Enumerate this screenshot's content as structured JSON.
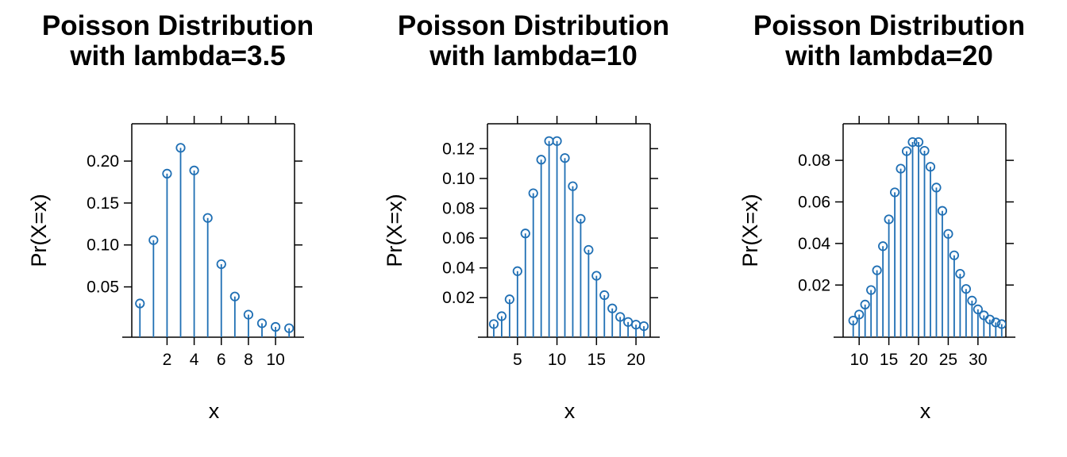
{
  "chart_data": [
    {
      "type": "lollipop",
      "title_lines": [
        "Poisson Distribution",
        "with lambda=3.5"
      ],
      "xlabel": "x",
      "ylabel": "Pr(X=x)",
      "xlim": [
        -0.6,
        11.4
      ],
      "ylim": [
        -0.01,
        0.2445
      ],
      "xticks": [
        2,
        4,
        6,
        8,
        10
      ],
      "xtick_labels": [
        "2",
        "4",
        "6",
        "8",
        "10"
      ],
      "yticks": [
        0.05,
        0.1,
        0.15,
        0.2
      ],
      "ytick_labels": [
        "0.05",
        "0.10",
        "0.15",
        "0.20"
      ],
      "x": [
        0,
        1,
        2,
        3,
        4,
        5,
        6,
        7,
        8,
        9,
        10,
        11
      ],
      "values": [
        0.0302,
        0.1057,
        0.185,
        0.2158,
        0.1888,
        0.1322,
        0.0771,
        0.0385,
        0.0169,
        0.0066,
        0.0023,
        0.0007
      ],
      "color": "#1F6FB4"
    },
    {
      "type": "lollipop",
      "title_lines": [
        "Poisson Distribution",
        "with lambda=10"
      ],
      "xlabel": "x",
      "ylabel": "Pr(X=x)",
      "xlim": [
        1.2,
        21.8
      ],
      "ylim": [
        -0.0065,
        0.1367
      ],
      "xticks": [
        5,
        10,
        15,
        20
      ],
      "xtick_labels": [
        "5",
        "10",
        "15",
        "20"
      ],
      "yticks": [
        0.02,
        0.04,
        0.06,
        0.08,
        0.1,
        0.12
      ],
      "ytick_labels": [
        "0.02",
        "0.04",
        "0.06",
        "0.08",
        "0.10",
        "0.12"
      ],
      "x": [
        2,
        3,
        4,
        5,
        6,
        7,
        8,
        9,
        10,
        11,
        12,
        13,
        14,
        15,
        16,
        17,
        18,
        19,
        20,
        21
      ],
      "values": [
        0.0023,
        0.0076,
        0.0189,
        0.0378,
        0.0631,
        0.0901,
        0.1126,
        0.1251,
        0.1251,
        0.1137,
        0.0948,
        0.0729,
        0.0521,
        0.0347,
        0.0217,
        0.0128,
        0.0071,
        0.0037,
        0.0019,
        0.0009
      ],
      "color": "#1F6FB4"
    },
    {
      "type": "lollipop",
      "title_lines": [
        "Poisson Distribution",
        "with lambda=20"
      ],
      "xlabel": "x",
      "ylabel": "Pr(X=x)",
      "xlim": [
        7.3,
        34.7
      ],
      "ylim": [
        -0.0051,
        0.0976
      ],
      "xticks": [
        10,
        15,
        20,
        25,
        30
      ],
      "xtick_labels": [
        "10",
        "15",
        "20",
        "25",
        "30"
      ],
      "yticks": [
        0.02,
        0.04,
        0.06,
        0.08
      ],
      "ytick_labels": [
        "0.02",
        "0.04",
        "0.06",
        "0.08"
      ],
      "x": [
        9,
        10,
        11,
        12,
        13,
        14,
        15,
        16,
        17,
        18,
        19,
        20,
        21,
        22,
        23,
        24,
        25,
        26,
        27,
        28,
        29,
        30,
        31,
        32,
        33,
        34
      ],
      "values": [
        0.0029,
        0.0058,
        0.0106,
        0.0176,
        0.0271,
        0.0387,
        0.0516,
        0.0646,
        0.076,
        0.0844,
        0.0888,
        0.0888,
        0.0846,
        0.0769,
        0.0669,
        0.0557,
        0.0446,
        0.0343,
        0.0254,
        0.0181,
        0.0125,
        0.0083,
        0.0054,
        0.0034,
        0.002,
        0.0012
      ],
      "color": "#1F6FB4"
    }
  ]
}
